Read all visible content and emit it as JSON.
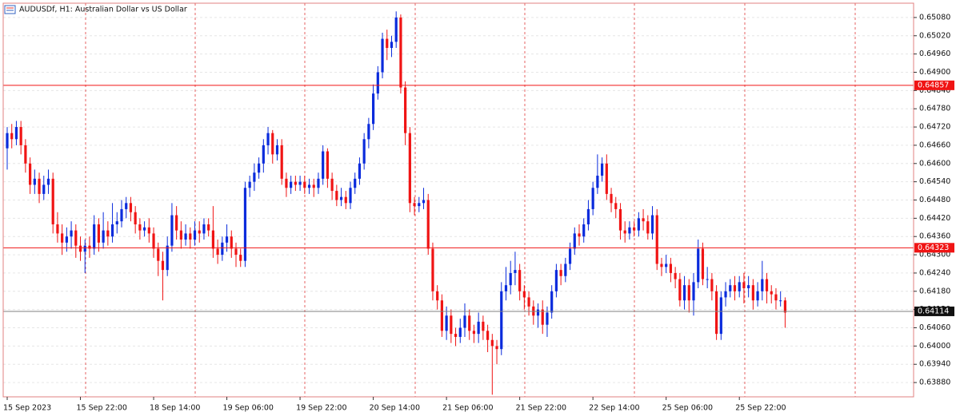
{
  "chart_data": {
    "type": "candlestick",
    "title": "AUDUSDf, H1:  Australian Dollar vs US Dollar",
    "categories": [
      "15 Sep 2023",
      null,
      null,
      null,
      null,
      null,
      null,
      null,
      null,
      null,
      null,
      null,
      null,
      null,
      null,
      null,
      "15 Sep 22:00",
      null,
      null,
      null,
      null,
      null,
      null,
      null,
      null,
      null,
      null,
      null,
      null,
      null,
      null,
      null,
      "18 Sep 14:00",
      null,
      null,
      null,
      null,
      null,
      null,
      null,
      null,
      null,
      null,
      null,
      null,
      null,
      null,
      null,
      "19 Sep 06:00",
      null,
      null,
      null,
      null,
      null,
      null,
      null,
      null,
      null,
      null,
      null,
      null,
      null,
      null,
      null,
      "19 Sep 22:00",
      null,
      null,
      null,
      null,
      null,
      null,
      null,
      null,
      null,
      null,
      null,
      null,
      null,
      null,
      null,
      "20 Sep 14:00",
      null,
      null,
      null,
      null,
      null,
      null,
      null,
      null,
      null,
      null,
      null,
      null,
      null,
      null,
      null,
      "21 Sep 06:00",
      null,
      null,
      null,
      null,
      null,
      null,
      null,
      null,
      null,
      null,
      null,
      null,
      null,
      null,
      null,
      "21 Sep 22:00",
      null,
      null,
      null,
      null,
      null,
      null,
      null,
      null,
      null,
      null,
      null,
      null,
      null,
      null,
      null,
      "22 Sep 14:00",
      null,
      null,
      null,
      null,
      null,
      null,
      null,
      null,
      null,
      null,
      null,
      null,
      null,
      null,
      null,
      "25 Sep 06:00",
      null,
      null,
      null,
      null,
      null,
      null,
      null,
      null,
      null,
      null,
      null,
      null,
      null,
      null,
      null,
      "25 Sep 22:00",
      null,
      null,
      null,
      null,
      null,
      null,
      null,
      null,
      null,
      null
    ],
    "open": [
      0.6465,
      0.647,
      0.6468,
      0.6472,
      0.6466,
      0.646,
      0.6453,
      0.6455,
      0.645,
      0.6453,
      0.6455,
      0.644,
      0.6437,
      0.6434,
      0.6436,
      0.6438,
      0.6433,
      0.6431,
      0.6433,
      0.6432,
      0.644,
      0.6434,
      0.6438,
      0.6436,
      0.644,
      0.6441,
      0.6445,
      0.6447,
      0.6444,
      0.644,
      0.6438,
      0.6439,
      0.6437,
      0.6432,
      0.6428,
      0.6425,
      0.6433,
      0.6443,
      0.6438,
      0.6435,
      0.6437,
      0.6435,
      0.6438,
      0.6437,
      0.644,
      0.6438,
      0.6432,
      0.643,
      0.6434,
      0.6436,
      0.6432,
      0.643,
      0.6428,
      0.6452,
      0.6454,
      0.6457,
      0.646,
      0.6466,
      0.647,
      0.6463,
      0.6466,
      0.6455,
      0.6452,
      0.6454,
      0.6453,
      0.6454,
      0.6452,
      0.6453,
      0.6452,
      0.6455,
      0.6464,
      0.6455,
      0.6451,
      0.6448,
      0.6449,
      0.6447,
      0.6452,
      0.6455,
      0.646,
      0.6468,
      0.6473,
      0.6483,
      0.649,
      0.6501,
      0.6498,
      0.65,
      0.6508,
      0.6485,
      0.647,
      0.6447,
      0.6446,
      0.6447,
      0.6448,
      0.6432,
      0.6418,
      0.6415,
      0.6405,
      0.641,
      0.6404,
      0.6403,
      0.6406,
      0.641,
      0.6405,
      0.6404,
      0.6408,
      0.6405,
      0.6402,
      0.64,
      0.6399,
      0.6418,
      0.642,
      0.6424,
      0.6425,
      0.6418,
      0.6416,
      0.6413,
      0.641,
      0.6412,
      0.6407,
      0.6411,
      0.6418,
      0.6425,
      0.6423,
      0.6427,
      0.6432,
      0.6437,
      0.6436,
      0.644,
      0.6445,
      0.6452,
      0.6456,
      0.646,
      0.645,
      0.6447,
      0.6445,
      0.6438,
      0.6437,
      0.6439,
      0.6438,
      0.6442,
      0.6441,
      0.6437,
      0.6443,
      0.6427,
      0.6426,
      0.6427,
      0.6424,
      0.6422,
      0.6415,
      0.642,
      0.6415,
      0.6421,
      0.6432,
      0.6422,
      0.6422,
      0.6418,
      0.6404,
      0.6416,
      0.6418,
      0.642,
      0.6418,
      0.6421,
      0.6419,
      0.642,
      0.6415,
      0.6418,
      0.6422,
      0.6418,
      0.6417,
      0.6415,
      0.6415
    ],
    "high": [
      0.6472,
      0.6473,
      0.6474,
      0.6474,
      0.6468,
      0.6462,
      0.6458,
      0.6457,
      0.6456,
      0.6458,
      0.6457,
      0.6444,
      0.644,
      0.6439,
      0.6441,
      0.644,
      0.6436,
      0.6435,
      0.6436,
      0.6443,
      0.6442,
      0.6444,
      0.6441,
      0.6447,
      0.6444,
      0.6448,
      0.6449,
      0.6449,
      0.6446,
      0.6442,
      0.6441,
      0.6442,
      0.6439,
      0.6434,
      0.6431,
      0.6436,
      0.6447,
      0.6446,
      0.6441,
      0.644,
      0.6439,
      0.6441,
      0.6441,
      0.6442,
      0.6442,
      0.6446,
      0.6435,
      0.6436,
      0.644,
      0.6438,
      0.6434,
      0.6432,
      0.6454,
      0.6456,
      0.646,
      0.6462,
      0.6468,
      0.6472,
      0.6471,
      0.6468,
      0.6468,
      0.6457,
      0.6456,
      0.6456,
      0.6456,
      0.6456,
      0.6455,
      0.6455,
      0.6457,
      0.6466,
      0.6465,
      0.6457,
      0.6453,
      0.6452,
      0.6451,
      0.6454,
      0.6457,
      0.6462,
      0.647,
      0.6475,
      0.6486,
      0.6492,
      0.6503,
      0.6504,
      0.6502,
      0.651,
      0.6509,
      0.6487,
      0.6472,
      0.6449,
      0.6449,
      0.6452,
      0.645,
      0.6434,
      0.642,
      0.6417,
      0.6413,
      0.6412,
      0.6406,
      0.6409,
      0.6414,
      0.6412,
      0.6407,
      0.6411,
      0.641,
      0.6407,
      0.6404,
      0.6402,
      0.6421,
      0.6426,
      0.6428,
      0.6431,
      0.6427,
      0.642,
      0.6418,
      0.6415,
      0.6414,
      0.6415,
      0.6413,
      0.642,
      0.6427,
      0.6427,
      0.6429,
      0.6434,
      0.6439,
      0.644,
      0.6442,
      0.6448,
      0.6454,
      0.6463,
      0.6462,
      0.6463,
      0.6452,
      0.6449,
      0.6447,
      0.6441,
      0.6441,
      0.6441,
      0.6444,
      0.6445,
      0.6443,
      0.6446,
      0.6445,
      0.6429,
      0.643,
      0.6429,
      0.6426,
      0.6424,
      0.6423,
      0.6422,
      0.6424,
      0.6435,
      0.6434,
      0.6426,
      0.6424,
      0.642,
      0.6418,
      0.6421,
      0.6422,
      0.6423,
      0.6423,
      0.6424,
      0.6423,
      0.6422,
      0.6421,
      0.6428,
      0.6424,
      0.642,
      0.6419,
      0.6418,
      0.6416
    ],
    "low": [
      0.6458,
      0.6465,
      0.6466,
      0.6463,
      0.6457,
      0.645,
      0.645,
      0.6447,
      0.6448,
      0.645,
      0.6437,
      0.6434,
      0.643,
      0.6431,
      0.6432,
      0.6429,
      0.6428,
      0.6424,
      0.6429,
      0.643,
      0.6431,
      0.6432,
      0.6433,
      0.6434,
      0.6437,
      0.6439,
      0.6442,
      0.6441,
      0.6437,
      0.6435,
      0.6436,
      0.6434,
      0.6429,
      0.6423,
      0.6415,
      0.6423,
      0.6431,
      0.6435,
      0.6432,
      0.6433,
      0.6432,
      0.6433,
      0.6434,
      0.6435,
      0.6436,
      0.6429,
      0.6427,
      0.6428,
      0.6431,
      0.6429,
      0.6426,
      0.6426,
      0.6426,
      0.6449,
      0.6451,
      0.6455,
      0.6457,
      0.6463,
      0.646,
      0.6461,
      0.6453,
      0.6449,
      0.645,
      0.6451,
      0.6451,
      0.645,
      0.645,
      0.6449,
      0.645,
      0.6453,
      0.6452,
      0.6448,
      0.6446,
      0.6446,
      0.6445,
      0.6445,
      0.645,
      0.6453,
      0.6458,
      0.6465,
      0.6471,
      0.6481,
      0.6488,
      0.6494,
      0.6495,
      0.6498,
      0.6483,
      0.6466,
      0.6444,
      0.6443,
      0.6444,
      0.6445,
      0.643,
      0.6415,
      0.6412,
      0.6403,
      0.6402,
      0.6401,
      0.64,
      0.6401,
      0.6403,
      0.6402,
      0.6401,
      0.6401,
      0.6402,
      0.6398,
      0.6384,
      0.6394,
      0.6397,
      0.6415,
      0.6417,
      0.642,
      0.6415,
      0.6412,
      0.641,
      0.6407,
      0.6406,
      0.6404,
      0.6403,
      0.6409,
      0.6416,
      0.642,
      0.6421,
      0.6425,
      0.643,
      0.6433,
      0.6434,
      0.6438,
      0.6443,
      0.645,
      0.6454,
      0.6448,
      0.6444,
      0.6442,
      0.6435,
      0.6434,
      0.6435,
      0.6436,
      0.6436,
      0.6438,
      0.6435,
      0.6435,
      0.6425,
      0.6423,
      0.6424,
      0.6421,
      0.6419,
      0.6413,
      0.6412,
      0.6411,
      0.641,
      0.6419,
      0.642,
      0.6419,
      0.6415,
      0.6402,
      0.6402,
      0.6413,
      0.6416,
      0.6415,
      0.6416,
      0.6414,
      0.6416,
      0.6412,
      0.6413,
      0.6415,
      0.6414,
      0.6414,
      0.6412,
      0.6413,
      0.6406
    ],
    "close": [
      0.647,
      0.6468,
      0.6472,
      0.6466,
      0.646,
      0.6453,
      0.6455,
      0.645,
      0.6453,
      0.6455,
      0.644,
      0.6437,
      0.6434,
      0.6436,
      0.6438,
      0.6433,
      0.6431,
      0.6433,
      0.6432,
      0.644,
      0.6434,
      0.6438,
      0.6436,
      0.644,
      0.6441,
      0.6445,
      0.6447,
      0.6444,
      0.644,
      0.6438,
      0.6439,
      0.6437,
      0.6432,
      0.6428,
      0.6425,
      0.6433,
      0.6443,
      0.6438,
      0.6435,
      0.6437,
      0.6435,
      0.6438,
      0.6437,
      0.644,
      0.6438,
      0.6432,
      0.643,
      0.6434,
      0.6436,
      0.6432,
      0.643,
      0.6428,
      0.6452,
      0.6454,
      0.6457,
      0.646,
      0.6466,
      0.647,
      0.6463,
      0.6466,
      0.6455,
      0.6452,
      0.6454,
      0.6453,
      0.6454,
      0.6452,
      0.6453,
      0.6452,
      0.6455,
      0.6464,
      0.6455,
      0.6451,
      0.6448,
      0.6449,
      0.6447,
      0.6452,
      0.6455,
      0.646,
      0.6468,
      0.6473,
      0.6483,
      0.649,
      0.6501,
      0.6498,
      0.65,
      0.6508,
      0.6485,
      0.647,
      0.6447,
      0.6446,
      0.6447,
      0.6448,
      0.6432,
      0.6418,
      0.6415,
      0.6405,
      0.641,
      0.6404,
      0.6403,
      0.6406,
      0.641,
      0.6405,
      0.6404,
      0.6408,
      0.6405,
      0.6402,
      0.64,
      0.6399,
      0.6418,
      0.642,
      0.6424,
      0.6425,
      0.6418,
      0.6416,
      0.6413,
      0.641,
      0.6412,
      0.6407,
      0.6411,
      0.6418,
      0.6425,
      0.6423,
      0.6427,
      0.6432,
      0.6437,
      0.6436,
      0.644,
      0.6445,
      0.6452,
      0.6456,
      0.646,
      0.645,
      0.6447,
      0.6445,
      0.6438,
      0.6437,
      0.6439,
      0.6438,
      0.6442,
      0.6441,
      0.6437,
      0.6443,
      0.6427,
      0.6426,
      0.6427,
      0.6424,
      0.6422,
      0.6415,
      0.642,
      0.6415,
      0.6421,
      0.6432,
      0.6422,
      0.6422,
      0.6418,
      0.6404,
      0.6416,
      0.6418,
      0.642,
      0.6418,
      0.6421,
      0.6419,
      0.642,
      0.6415,
      0.6418,
      0.6422,
      0.6418,
      0.6417,
      0.6415,
      0.6415,
      0.6411
    ],
    "up_color": "#0a2bdc",
    "down_color": "#f01414",
    "ylim": [
      0.63833,
      0.65127
    ],
    "yticks": [
      {
        "value": 0.6508,
        "label": "0.65080"
      },
      {
        "value": 0.6502,
        "label": "0.65020"
      },
      {
        "value": 0.6496,
        "label": "0.64960"
      },
      {
        "value": 0.649,
        "label": "0.64900"
      },
      {
        "value": 0.6484,
        "label": "0.64840"
      },
      {
        "value": 0.6478,
        "label": "0.64780"
      },
      {
        "value": 0.6472,
        "label": "0.64720"
      },
      {
        "value": 0.6466,
        "label": "0.64660"
      },
      {
        "value": 0.646,
        "label": "0.64600"
      },
      {
        "value": 0.6454,
        "label": "0.64540"
      },
      {
        "value": 0.6448,
        "label": "0.64480"
      },
      {
        "value": 0.6442,
        "label": "0.64420"
      },
      {
        "value": 0.6436,
        "label": "0.64360"
      },
      {
        "value": 0.643,
        "label": "0.64300"
      },
      {
        "value": 0.6424,
        "label": "0.64240"
      },
      {
        "value": 0.6418,
        "label": "0.64180"
      },
      {
        "value": 0.6412,
        "label": "0.64120"
      },
      {
        "value": 0.6406,
        "label": "0.64060"
      },
      {
        "value": 0.64,
        "label": "0.64000"
      },
      {
        "value": 0.6394,
        "label": "0.63940"
      },
      {
        "value": 0.6388,
        "label": "0.63880"
      }
    ],
    "grid": true,
    "levels": [
      {
        "value": 0.64857,
        "color": "#f01414"
      },
      {
        "value": 0.64323,
        "color": "#f01414"
      },
      {
        "value": 0.64114,
        "color": "#111111"
      }
    ]
  }
}
